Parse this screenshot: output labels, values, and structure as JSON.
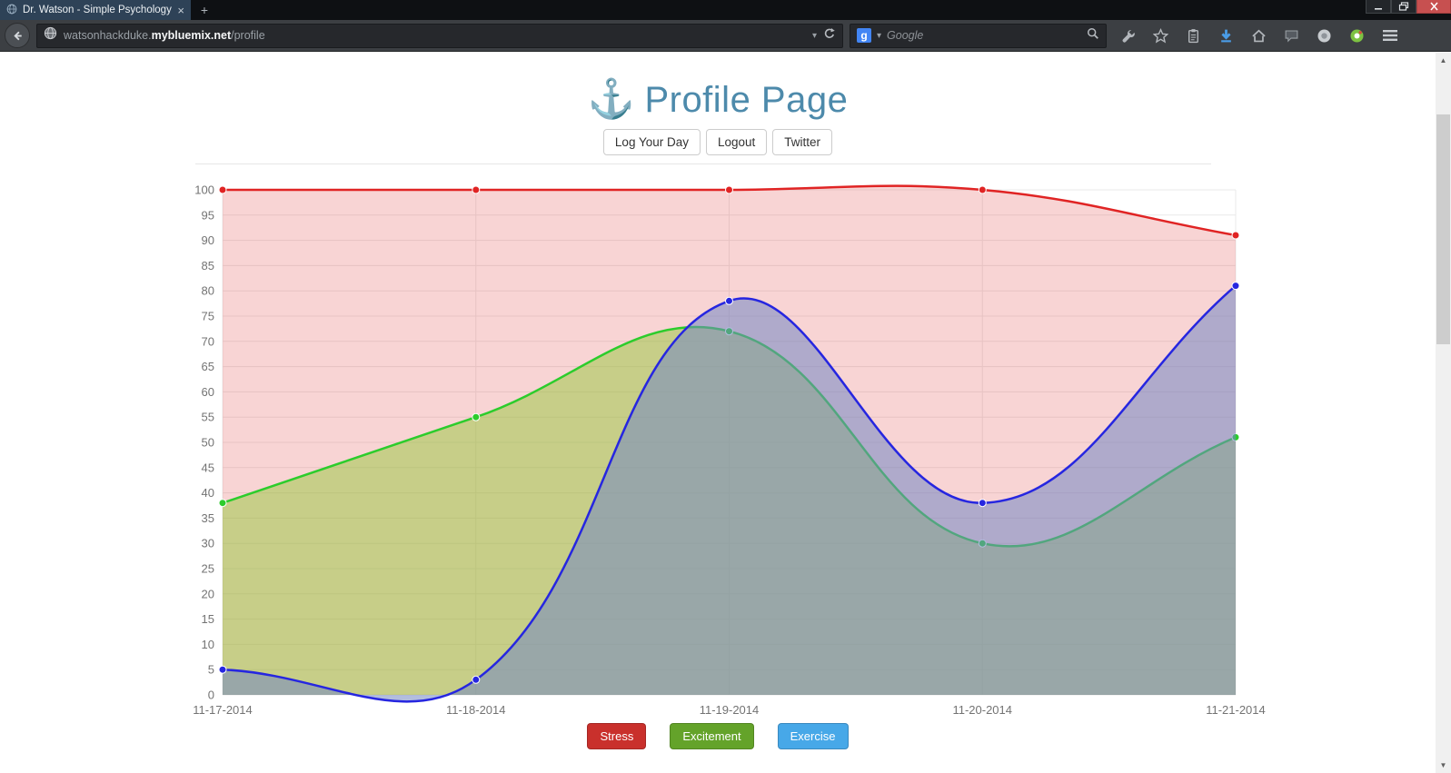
{
  "window": {
    "tab_title": "Dr. Watson - Simple Psychology",
    "tab_close_glyph": "×",
    "new_tab_glyph": "+"
  },
  "nav": {
    "url_full": "watsonhackduke.mybluemix.net/profile",
    "url_subdomain": "watsonhackduke.",
    "url_domain": "mybluemix.net",
    "url_path": "/profile",
    "caret_glyph": "▾",
    "search_engine_initial": "g",
    "search_placeholder": "Google"
  },
  "page": {
    "anchor_glyph": "⚓",
    "title": "Profile Page",
    "buttons": {
      "log_day": "Log Your Day",
      "logout": "Logout",
      "twitter": "Twitter"
    }
  },
  "chart_data": {
    "type": "line",
    "title": "",
    "xlabel": "",
    "ylabel": "",
    "x": [
      "11-17-2014",
      "11-18-2014",
      "11-19-2014",
      "11-20-2014",
      "11-21-2014"
    ],
    "series": [
      {
        "name": "Stress",
        "color": "#e02424",
        "fill": "rgba(224,60,60,0.22)",
        "values": [
          100,
          100,
          100,
          100,
          91
        ]
      },
      {
        "name": "Excitement",
        "color": "#2ccc2c",
        "fill": "rgba(150,200,60,0.50)",
        "values": [
          38,
          55,
          72,
          30,
          51
        ]
      },
      {
        "name": "Exercise",
        "color": "#2626e0",
        "fill": "rgba(115,135,195,0.55)",
        "values": [
          5,
          3,
          78,
          38,
          81
        ]
      }
    ],
    "ylim": [
      0,
      100
    ],
    "ytick_step": 5,
    "grid": true,
    "curve": "bezier",
    "legend_position": "bottom"
  },
  "legend": [
    {
      "label": "Stress",
      "color": "#c9302c"
    },
    {
      "label": "Excitement",
      "color": "#64a32a"
    },
    {
      "label": "Exercise",
      "color": "#47a8e8"
    }
  ],
  "scrollbar": {
    "up_glyph": "▲",
    "down_glyph": "▼"
  }
}
